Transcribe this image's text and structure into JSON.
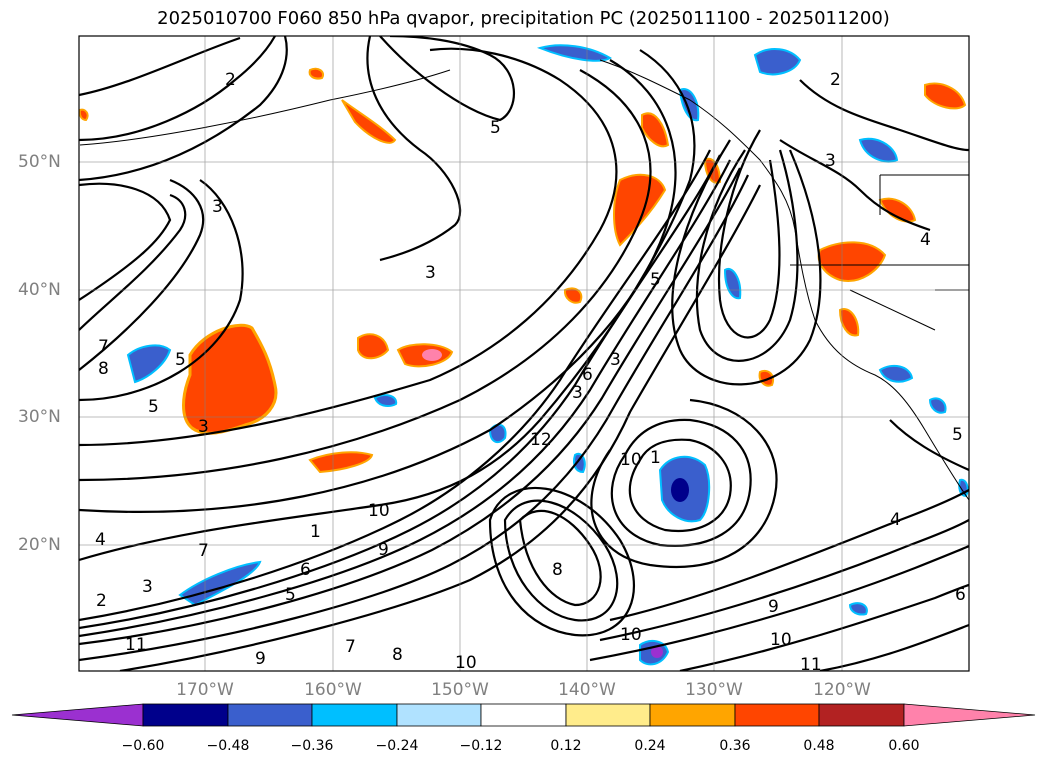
{
  "title": "2025010700 F060 850 hPa qvapor, precipitation PC (2025011100 - 2025011200)",
  "map": {
    "lat_labels": [
      "50°N",
      "40°N",
      "30°N",
      "20°N"
    ],
    "lon_labels": [
      "170°W",
      "160°W",
      "150°W",
      "140°W",
      "130°W",
      "120°W"
    ],
    "contour_labels": [
      "2",
      "3",
      "5",
      "3",
      "7",
      "8",
      "5",
      "3",
      "7",
      "4",
      "3",
      "2",
      "11",
      "9",
      "10",
      "1",
      "6",
      "5",
      "9",
      "7",
      "8",
      "10",
      "10",
      "1",
      "5",
      "3",
      "8",
      "3",
      "12",
      "10",
      "9",
      "10",
      "11",
      "2",
      "3",
      "4",
      "5",
      "6",
      "5",
      "6",
      "4"
    ],
    "field_name": "850 hPa qvapor",
    "overlay_name": "precipitation PC"
  },
  "colorbar": {
    "tick_labels": [
      "−0.60",
      "−0.48",
      "−0.36",
      "−0.24",
      "−0.12",
      "0.12",
      "0.24",
      "0.36",
      "0.48",
      "0.60"
    ],
    "colors": [
      "#9b30d0",
      "#00008b",
      "#3a5fcd",
      "#00bfff",
      "#b0e2ff",
      "#ffffff",
      "#ffec8b",
      "#ffa500",
      "#ff4500",
      "#b22222",
      "#ff82ab",
      "#ff82ab"
    ]
  }
}
